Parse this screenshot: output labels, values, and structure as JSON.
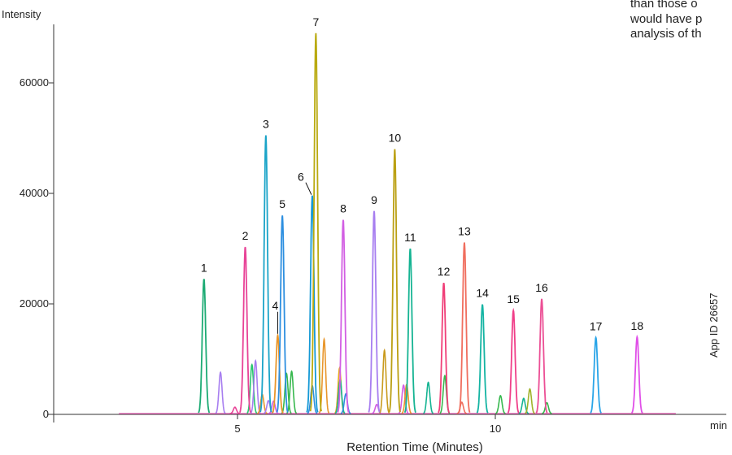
{
  "caption_lines": [
    "than those o",
    "would have p",
    "analysis of th"
  ],
  "app_id": "App ID 26657",
  "chart_data": {
    "type": "line",
    "title": "",
    "xlabel": "Retention Time (Minutes)",
    "ylabel": "Intensity",
    "x_unit": "min",
    "xlim": [
      2.5,
      13.8
    ],
    "ylim": [
      0,
      70000
    ],
    "xticks": [
      5,
      10
    ],
    "yticks": [
      0,
      20000,
      40000,
      60000
    ],
    "grid": false,
    "baseline_range": [
      2.7,
      13.5
    ],
    "peaks": [
      {
        "label": "1",
        "x": 4.35,
        "y": 24500,
        "color": "#1dab74"
      },
      {
        "label": "2",
        "x": 5.15,
        "y": 30300,
        "color": "#e84397"
      },
      {
        "label": "3",
        "x": 5.55,
        "y": 50500,
        "color": "#1ba4c8"
      },
      {
        "label": "4",
        "x": 5.78,
        "y": 14300,
        "color": "#e8962b"
      },
      {
        "label": "5",
        "x": 5.87,
        "y": 36000,
        "color": "#2d8fe0"
      },
      {
        "label": "6",
        "x": 6.45,
        "y": 39600,
        "color": "#1599d6"
      },
      {
        "label": "7",
        "x": 6.52,
        "y": 69000,
        "color": "#b9aa10"
      },
      {
        "label": "8",
        "x": 7.05,
        "y": 35200,
        "color": "#d25ee3"
      },
      {
        "label": "9",
        "x": 7.65,
        "y": 36800,
        "color": "#a77ef0"
      },
      {
        "label": "10",
        "x": 8.05,
        "y": 48000,
        "color": "#bba013"
      },
      {
        "label": "11",
        "x": 8.35,
        "y": 30000,
        "color": "#16b493"
      },
      {
        "label": "12",
        "x": 9.0,
        "y": 23800,
        "color": "#f03f78"
      },
      {
        "label": "13",
        "x": 9.4,
        "y": 31100,
        "color": "#f06e5e"
      },
      {
        "label": "14",
        "x": 9.75,
        "y": 19900,
        "color": "#14b4a3"
      },
      {
        "label": "15",
        "x": 10.35,
        "y": 18800,
        "color": "#f03f89"
      },
      {
        "label": "16",
        "x": 10.9,
        "y": 20900,
        "color": "#ec4f95"
      },
      {
        "label": "17",
        "x": 11.95,
        "y": 13900,
        "color": "#2aa5e8"
      },
      {
        "label": "18",
        "x": 12.75,
        "y": 14000,
        "color": "#e04fe8"
      }
    ],
    "minor_peaks": [
      {
        "x": 4.67,
        "y": 7600,
        "color": "#a77ef0"
      },
      {
        "x": 5.28,
        "y": 9000,
        "color": "#28c76f"
      },
      {
        "x": 5.35,
        "y": 9700,
        "color": "#a77ef0"
      },
      {
        "x": 5.48,
        "y": 3600,
        "color": "#e8962b"
      },
      {
        "x": 5.7,
        "y": 2400,
        "color": "#d25ee3"
      },
      {
        "x": 5.95,
        "y": 7400,
        "color": "#37b84e"
      },
      {
        "x": 6.05,
        "y": 7800,
        "color": "#37b84e"
      },
      {
        "x": 6.45,
        "y": 5200,
        "color": "#2d8fe0"
      },
      {
        "x": 6.68,
        "y": 13600,
        "color": "#e8962b"
      },
      {
        "x": 6.98,
        "y": 8400,
        "color": "#e8a91f"
      },
      {
        "x": 6.99,
        "y": 6300,
        "color": "#16b493"
      },
      {
        "x": 7.1,
        "y": 3700,
        "color": "#2d8fe0"
      },
      {
        "x": 7.7,
        "y": 1800,
        "color": "#d25ee3"
      },
      {
        "x": 7.85,
        "y": 11600,
        "color": "#c99b1e"
      },
      {
        "x": 8.22,
        "y": 5300,
        "color": "#d25ee3"
      },
      {
        "x": 8.28,
        "y": 5400,
        "color": "#e8962b"
      },
      {
        "x": 8.7,
        "y": 5800,
        "color": "#16b493"
      },
      {
        "x": 9.02,
        "y": 7000,
        "color": "#37b84e"
      },
      {
        "x": 9.35,
        "y": 2200,
        "color": "#f06e5e"
      },
      {
        "x": 10.1,
        "y": 3400,
        "color": "#37b84e"
      },
      {
        "x": 10.55,
        "y": 2900,
        "color": "#16b493"
      },
      {
        "x": 10.67,
        "y": 4600,
        "color": "#9fb22a"
      },
      {
        "x": 11.0,
        "y": 2100,
        "color": "#37b84e"
      },
      {
        "x": 4.95,
        "y": 1300,
        "color": "#e84397"
      },
      {
        "x": 5.6,
        "y": 2500,
        "color": "#a77ef0"
      }
    ]
  }
}
